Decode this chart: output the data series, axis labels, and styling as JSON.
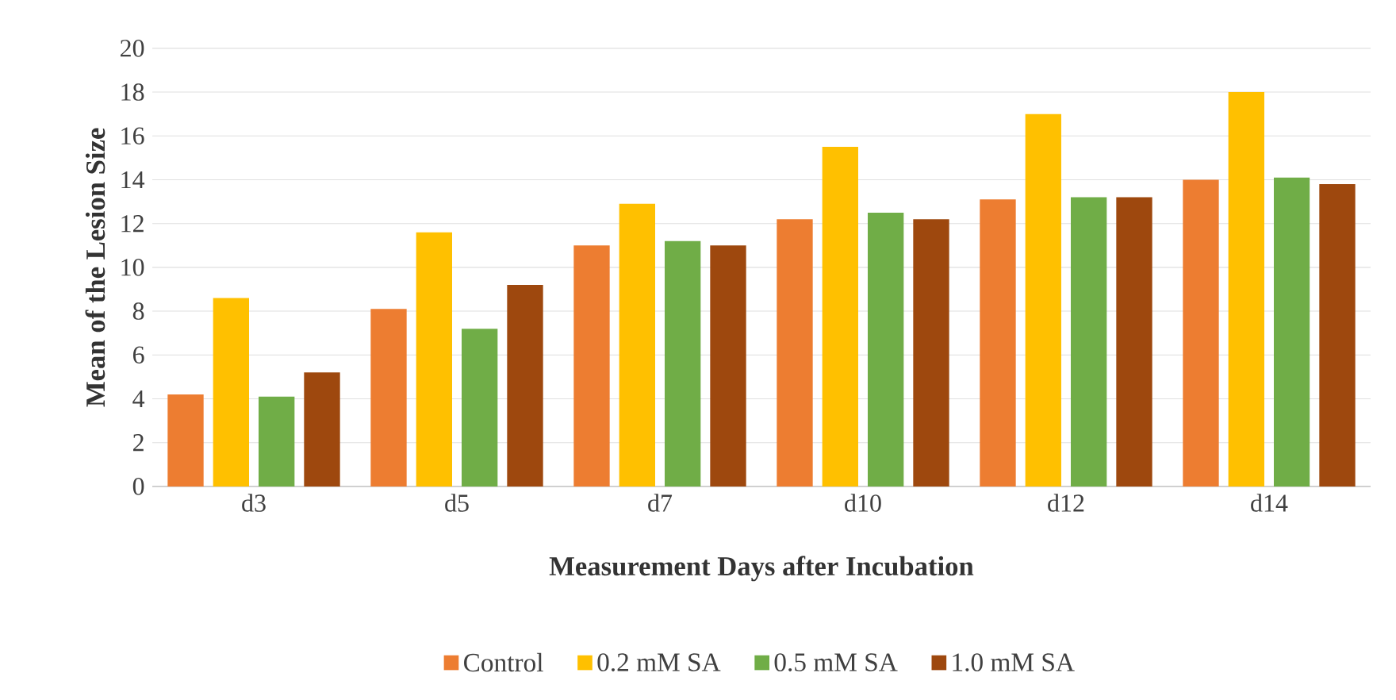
{
  "chart_data": {
    "type": "bar",
    "xlabel": "Measurement Days after Incubation",
    "ylabel": "Mean of the Lesion Size",
    "categories": [
      "d3",
      "d5",
      "d7",
      "d10",
      "d12",
      "d14"
    ],
    "series": [
      {
        "name": "Control",
        "color": "#ed7d31",
        "values": [
          4.2,
          8.1,
          11.0,
          12.2,
          13.1,
          14.0
        ]
      },
      {
        "name": "0.2 mM SA",
        "color": "#ffc000",
        "values": [
          8.6,
          11.6,
          12.9,
          15.5,
          17.0,
          18.0
        ]
      },
      {
        "name": "0.5 mM SA",
        "color": "#70ad47",
        "values": [
          4.1,
          7.2,
          11.2,
          12.5,
          13.2,
          14.1
        ]
      },
      {
        "name": "1.0 mM SA",
        "color": "#9e480e",
        "values": [
          5.2,
          9.2,
          11.0,
          12.2,
          13.2,
          13.8
        ]
      }
    ],
    "ylim": [
      0,
      20
    ],
    "yticks": [
      0,
      2,
      4,
      6,
      8,
      10,
      12,
      14,
      16,
      18,
      20
    ],
    "grid": "y",
    "legend": "bottom"
  }
}
